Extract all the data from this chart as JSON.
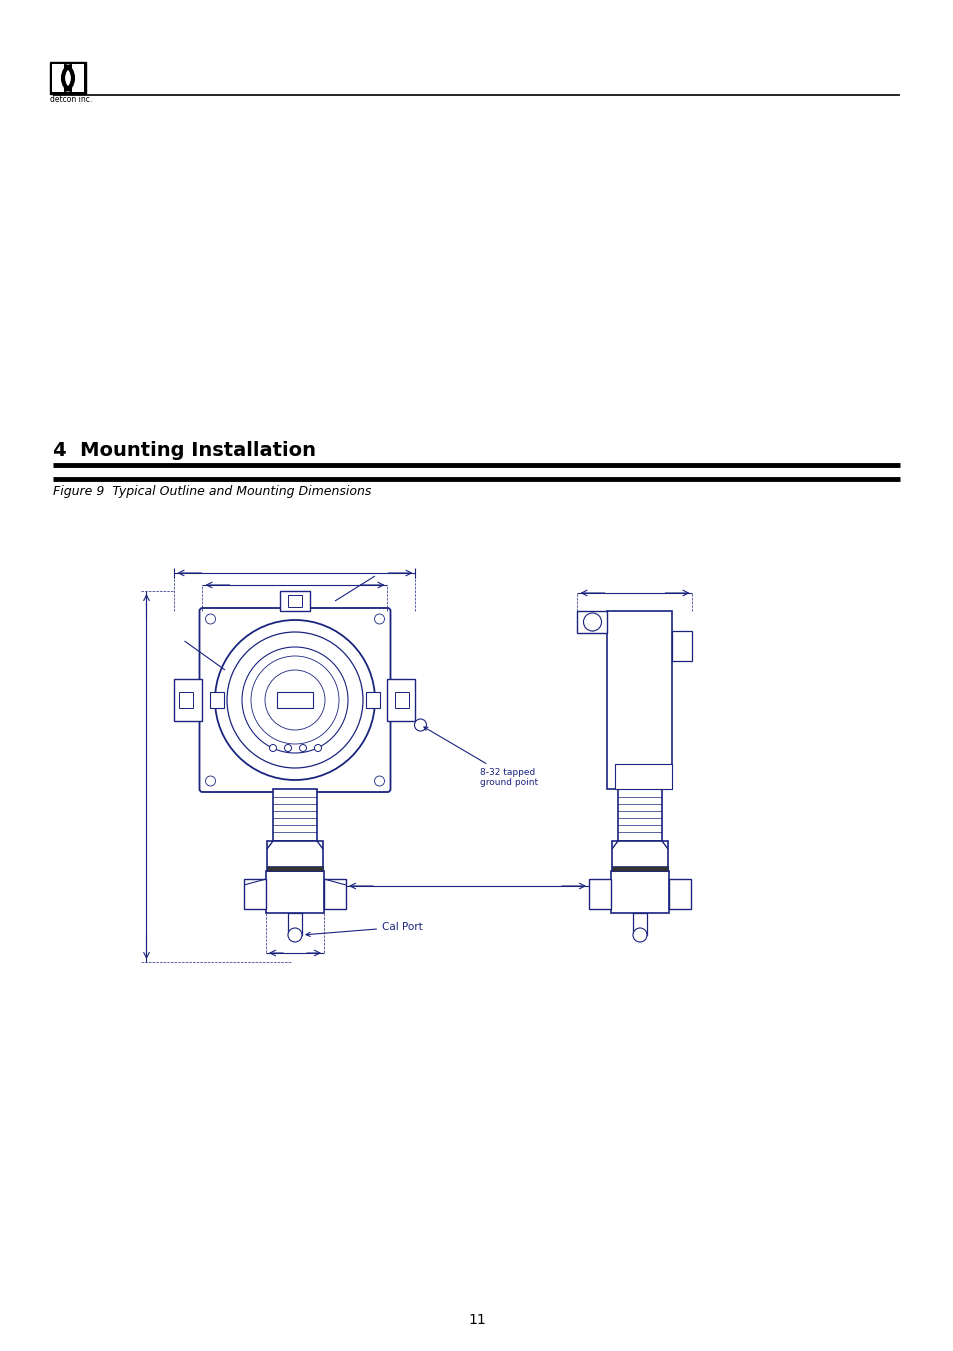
{
  "bg_color": "#ffffff",
  "logo_text": "detcon inc.",
  "section_title": "4  Mounting Installation",
  "figure_title": "Figure 9  Typical Outline and Mounting Dimensions",
  "annotation_ground": "8-32 tapped\nground point",
  "annotation_cal": "Cal Port",
  "dc": "#1a237e",
  "lc": "#000000",
  "page_num": "11"
}
